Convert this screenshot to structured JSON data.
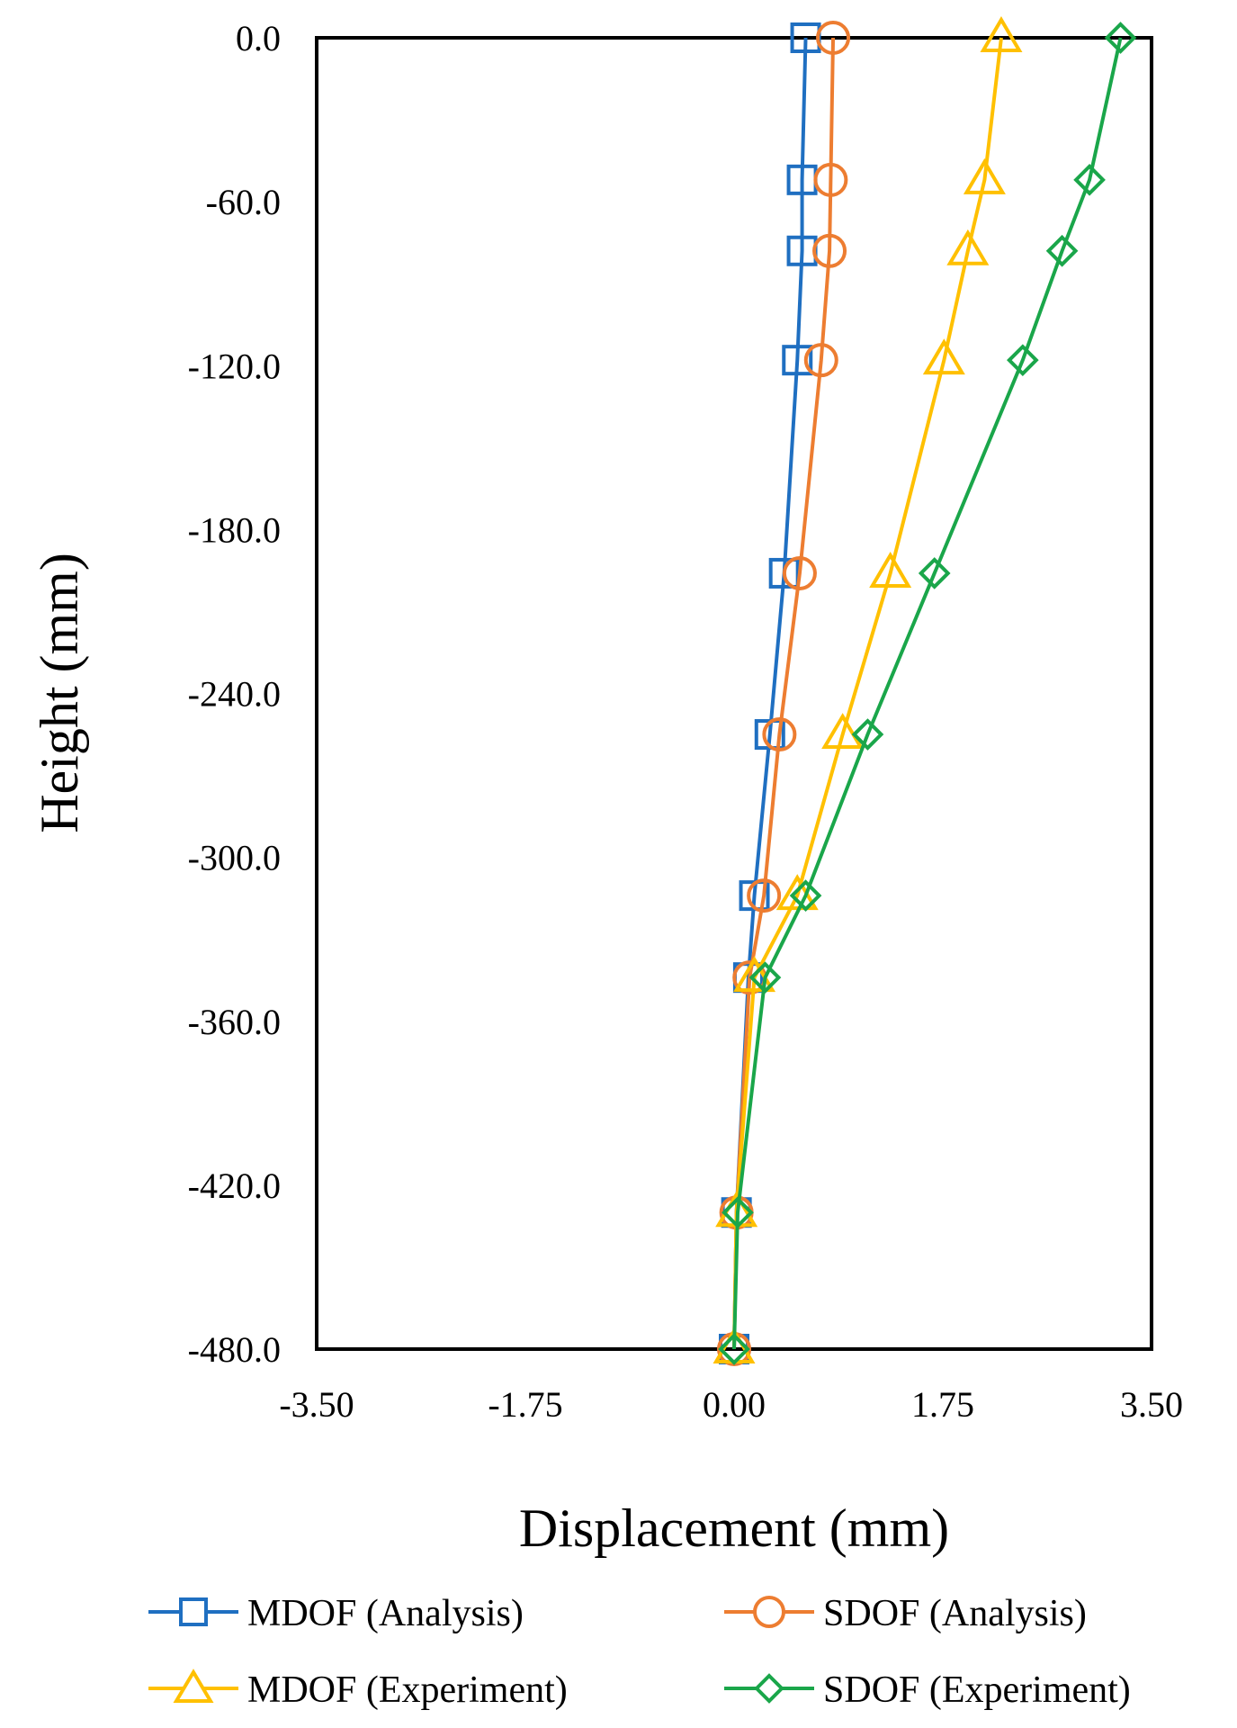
{
  "chart_data": {
    "type": "line",
    "xlabel": "Displacement (mm)",
    "ylabel": "Height (mm)",
    "xlim": [
      -3.5,
      3.5
    ],
    "ylim": [
      -480,
      0
    ],
    "x_ticks": [
      "-3.50",
      "-1.75",
      "0.00",
      "1.75",
      "3.50"
    ],
    "y_ticks": [
      "0.0",
      "-60.0",
      "-120.0",
      "-180.0",
      "-240.0",
      "-300.0",
      "-360.0",
      "-420.0",
      "-480.0"
    ],
    "grid": false,
    "legend_position": "bottom",
    "heights": [
      0,
      -52,
      -78,
      -118,
      -196,
      -255,
      -314,
      -344,
      -430,
      -480
    ],
    "series": [
      {
        "name": "MDOF (Analysis)",
        "color": "#1f6fc1",
        "marker": "square",
        "values": [
          0.6,
          0.57,
          0.57,
          0.53,
          0.42,
          0.3,
          0.17,
          0.12,
          0.02,
          0.0
        ]
      },
      {
        "name": "SDOF (Analysis)",
        "color": "#ed7d31",
        "marker": "circle",
        "values": [
          0.83,
          0.81,
          0.8,
          0.73,
          0.55,
          0.38,
          0.25,
          0.13,
          0.02,
          0.0
        ]
      },
      {
        "name": "MDOF (Experiment)",
        "color": "#ffc000",
        "marker": "triangle",
        "values": [
          2.24,
          2.1,
          1.96,
          1.76,
          1.31,
          0.91,
          0.53,
          0.17,
          0.02,
          0.0
        ]
      },
      {
        "name": "SDOF (Experiment)",
        "color": "#1aa64a",
        "marker": "diamond",
        "values": [
          3.24,
          2.98,
          2.75,
          2.42,
          1.68,
          1.12,
          0.6,
          0.26,
          0.03,
          0.0
        ]
      }
    ]
  }
}
